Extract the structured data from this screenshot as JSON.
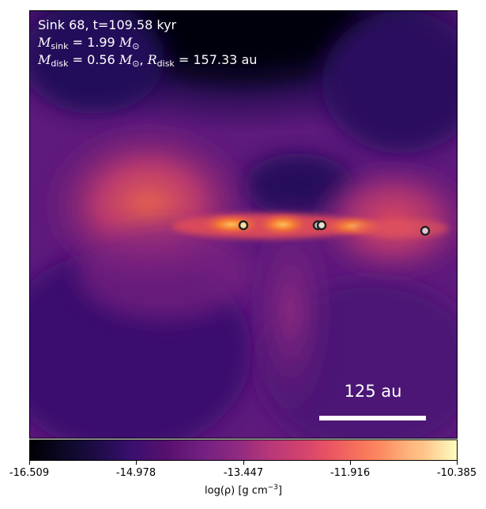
{
  "header": {
    "sink_line": "Sink 68, t=109.58 kyr",
    "msink_sub": "sink",
    "msink_value": " = 1.99 ",
    "mdisk_sub": "disk",
    "mdisk_value": " = 0.56 ",
    "rdisk_sub": "disk",
    "rdisk_value": " = 157.33 au",
    "sun_symbol": "⊙"
  },
  "scale_bar": {
    "label": "125 au"
  },
  "colorbar": {
    "colormap": "inferno",
    "ticks": [
      "-16.509",
      "-14.978",
      "-13.447",
      "-11.916",
      "-10.385"
    ],
    "label_prefix": "log(ρ) [g cm",
    "label_exp": "−3",
    "label_suffix": "]"
  },
  "sinks": [
    {
      "fill": "#fde0a0"
    },
    {
      "fill": "#c8c8c8"
    },
    {
      "fill": "#e8e0d0"
    },
    {
      "fill": "#e8c8d8"
    }
  ]
}
